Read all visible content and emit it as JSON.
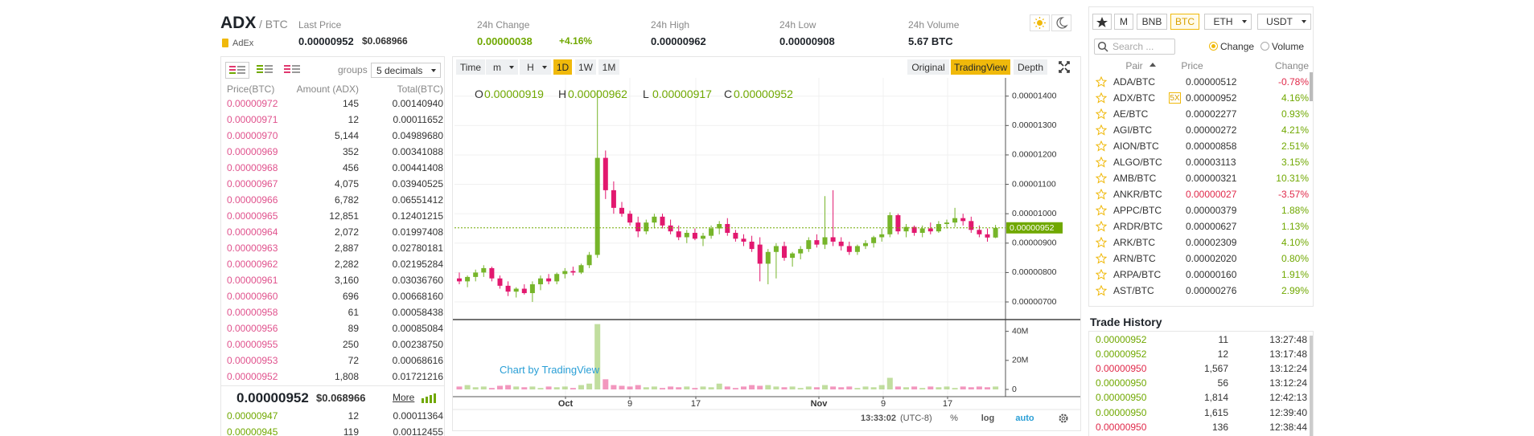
{
  "header": {
    "symbol": "ADX",
    "quote": "/ BTC",
    "asset_name": "AdEx",
    "stats": [
      {
        "label": "Last Price",
        "value": "0.00000952",
        "extra": "$0.068966"
      },
      {
        "label": "24h Change",
        "value": "0.00000038",
        "extra": "+4.16%",
        "color": "#70a800"
      },
      {
        "label": "24h High",
        "value": "0.00000962"
      },
      {
        "label": "24h Low",
        "value": "0.00000908"
      },
      {
        "label": "24h Volume",
        "value": "5.67 BTC"
      }
    ]
  },
  "order_book": {
    "groups_label": "groups",
    "groups_value": "5 decimals",
    "columns": [
      "Price(BTC)",
      "Amount (ADX)",
      "Total(BTC)"
    ],
    "ask_color": "#e0528d",
    "bid_color": "#70a800",
    "asks": [
      [
        "0.00000972",
        "145",
        "0.00140940"
      ],
      [
        "0.00000971",
        "12",
        "0.00011652"
      ],
      [
        "0.00000970",
        "5,144",
        "0.04989680"
      ],
      [
        "0.00000969",
        "352",
        "0.00341088"
      ],
      [
        "0.00000968",
        "456",
        "0.00441408"
      ],
      [
        "0.00000967",
        "4,075",
        "0.03940525"
      ],
      [
        "0.00000966",
        "6,782",
        "0.06551412"
      ],
      [
        "0.00000965",
        "12,851",
        "0.12401215"
      ],
      [
        "0.00000964",
        "2,072",
        "0.01997408"
      ],
      [
        "0.00000963",
        "2,887",
        "0.02780181"
      ],
      [
        "0.00000962",
        "2,282",
        "0.02195284"
      ],
      [
        "0.00000961",
        "3,160",
        "0.03036760"
      ],
      [
        "0.00000960",
        "696",
        "0.00668160"
      ],
      [
        "0.00000958",
        "61",
        "0.00058438"
      ],
      [
        "0.00000956",
        "89",
        "0.00085084"
      ],
      [
        "0.00000955",
        "250",
        "0.00238750"
      ],
      [
        "0.00000953",
        "72",
        "0.00068616"
      ],
      [
        "0.00000952",
        "1,808",
        "0.01721216"
      ]
    ],
    "last_price": "0.00000952",
    "last_price_usd": "$0.068966",
    "more": "More",
    "bids": [
      [
        "0.00000947",
        "12",
        "0.00011364"
      ],
      [
        "0.00000945",
        "119",
        "0.00112455"
      ]
    ]
  },
  "chart_data": {
    "type": "candlestick",
    "toolbar": {
      "left": [
        "Time",
        "m",
        "H",
        "1D",
        "1W",
        "1M"
      ],
      "left_dropdowns": [
        1,
        2
      ],
      "active_left": 3,
      "right": [
        "Original",
        "TradingView",
        "Depth"
      ],
      "active_right": 1
    },
    "ohlc_legend": [
      {
        "key": "O",
        "value": "0.00000919"
      },
      {
        "key": "H",
        "value": "0.00000962"
      },
      {
        "key": "L",
        "value": "0.00000917"
      },
      {
        "key": "C",
        "value": "0.00000952"
      }
    ],
    "up_color": "#76b52a",
    "down_color": "#e2186f",
    "candles": [
      [
        7.8e-06,
        8e-06,
        7.6e-06,
        7.7e-06
      ],
      [
        7.7e-06,
        7.9e-06,
        7.5e-06,
        7.85e-06
      ],
      [
        7.85e-06,
        8.1e-06,
        7.7e-06,
        8e-06
      ],
      [
        8e-06,
        8.25e-06,
        7.85e-06,
        8.15e-06
      ],
      [
        8.15e-06,
        8.2e-06,
        7.7e-06,
        7.8e-06
      ],
      [
        7.8e-06,
        7.9e-06,
        7.45e-06,
        7.55e-06
      ],
      [
        7.55e-06,
        7.7e-06,
        7.2e-06,
        7.35e-06
      ],
      [
        7.35e-06,
        7.5e-06,
        7.15e-06,
        7.45e-06
      ],
      [
        7.45e-06,
        7.6e-06,
        7.25e-06,
        7.3e-06
      ],
      [
        7.3e-06,
        7.7e-06,
        7e-06,
        7.6e-06
      ],
      [
        7.6e-06,
        7.9e-06,
        7.4e-06,
        7.8e-06
      ],
      [
        7.8e-06,
        7.95e-06,
        7.6e-06,
        7.7e-06
      ],
      [
        7.7e-06,
        8e-06,
        7.6e-06,
        7.95e-06
      ],
      [
        7.95e-06,
        8.15e-06,
        7.8e-06,
        8.05e-06
      ],
      [
        8.05e-06,
        8.2e-06,
        7.9e-06,
        8e-06
      ],
      [
        8e-06,
        8.3e-06,
        7.95e-06,
        8.25e-06
      ],
      [
        8.25e-06,
        8.7e-06,
        8.15e-06,
        8.6e-06
      ],
      [
        8.6e-06,
        1.42e-05,
        8.5e-06,
        1.19e-05
      ],
      [
        1.19e-05,
        1.215e-05,
        1.05e-05,
        1.08e-05
      ],
      [
        1.08e-05,
        1.11e-05,
        1e-05,
        1.02e-05
      ],
      [
        1.02e-05,
        1.04e-05,
        9.9e-06,
        1e-05
      ],
      [
        1e-05,
        1.01e-05,
        9.6e-06,
        9.7e-06
      ],
      [
        9.7e-06,
        9.9e-06,
        9.2e-06,
        9.4e-06
      ],
      [
        9.4e-06,
        9.8e-06,
        9.3e-06,
        9.7e-06
      ],
      [
        9.7e-06,
        1e-05,
        9.5e-06,
        9.9e-06
      ],
      [
        9.9e-06,
        1e-05,
        9.5e-06,
        9.6e-06
      ],
      [
        9.6e-06,
        9.8e-06,
        9.3e-06,
        9.4e-06
      ],
      [
        9.4e-06,
        9.6e-06,
        9.1e-06,
        9.2e-06
      ],
      [
        9.2e-06,
        9.45e-06,
        9e-06,
        9.35e-06
      ],
      [
        9.35e-06,
        9.5e-06,
        9.1e-06,
        9.15e-06
      ],
      [
        9.15e-06,
        9.35e-06,
        8.9e-06,
        9.25e-06
      ],
      [
        9.25e-06,
        9.6e-06,
        9.15e-06,
        9.5e-06
      ],
      [
        9.5e-06,
        9.75e-06,
        9.3e-06,
        9.65e-06
      ],
      [
        9.65e-06,
        9.85e-06,
        9.25e-06,
        9.35e-06
      ],
      [
        9.35e-06,
        9.45e-06,
        9.05e-06,
        9.15e-06
      ],
      [
        9.15e-06,
        9.3e-06,
        8.9e-06,
        9.05e-06
      ],
      [
        9.05e-06,
        9.25e-06,
        8.7e-06,
        8.8e-06
      ],
      [
        8.95e-06,
        9.2e-06,
        7.7e-06,
        8.3e-06
      ],
      [
        8.3e-06,
        8.8e-06,
        7.6e-06,
        8.7e-06
      ],
      [
        8.7e-06,
        9e-06,
        7.8e-06,
        8.9e-06
      ],
      [
        8.9e-06,
        9.05e-06,
        8.4e-06,
        8.5e-06
      ],
      [
        8.5e-06,
        8.7e-06,
        8.2e-06,
        8.65e-06
      ],
      [
        8.65e-06,
        8.9e-06,
        8.45e-06,
        8.8e-06
      ],
      [
        8.8e-06,
        9.2e-06,
        8.7e-06,
        9.1e-06
      ],
      [
        9.1e-06,
        9.3e-06,
        8.85e-06,
        8.95e-06
      ],
      [
        8.95e-06,
        1.06e-05,
        8.8e-06,
        9.2e-06
      ],
      [
        9.2e-06,
        1.08e-05,
        8.9e-06,
        9.05e-06
      ],
      [
        9.05e-06,
        9.2e-06,
        8.75e-06,
        8.9e-06
      ],
      [
        8.9e-06,
        9.05e-06,
        8.6e-06,
        8.7e-06
      ],
      [
        8.7e-06,
        8.95e-06,
        8.6e-06,
        8.9e-06
      ],
      [
        8.9e-06,
        9.1e-06,
        8.8e-06,
        9e-06
      ],
      [
        9e-06,
        9.25e-06,
        8.85e-06,
        9.2e-06
      ],
      [
        9.2e-06,
        9.5e-06,
        9.05e-06,
        9.3e-06
      ],
      [
        9.3e-06,
        1.005e-05,
        9.2e-06,
        9.95e-06
      ],
      [
        9.95e-06,
        1e-05,
        9.3e-06,
        9.4e-06
      ],
      [
        9.4e-06,
        9.65e-06,
        9.2e-06,
        9.55e-06
      ],
      [
        9.55e-06,
        9.6e-06,
        9.25e-06,
        9.35e-06
      ],
      [
        9.35e-06,
        9.6e-06,
        9.2e-06,
        9.5e-06
      ],
      [
        9.5e-06,
        9.7e-06,
        9.3e-06,
        9.4e-06
      ],
      [
        9.4e-06,
        9.75e-06,
        9.35e-06,
        9.65e-06
      ],
      [
        9.65e-06,
        9.8e-06,
        9.5e-06,
        9.7e-06
      ],
      [
        9.7e-06,
        1.02e-05,
        9.55e-06,
        9.85e-06
      ],
      [
        9.85e-06,
        1e-05,
        9.6e-06,
        9.75e-06
      ],
      [
        9.75e-06,
        9.9e-06,
        9.35e-06,
        9.45e-06
      ],
      [
        9.45e-06,
        9.6e-06,
        9.2e-06,
        9.3e-06
      ],
      [
        9.3e-06,
        9.5e-06,
        9.05e-06,
        9.19e-06
      ],
      [
        9.19e-06,
        9.62e-06,
        9.17e-06,
        9.52e-06
      ]
    ],
    "volumes": [
      2000000,
      3000000,
      1500000,
      2000000,
      1000000,
      2500000,
      3000000,
      2000000,
      1500000,
      2000000,
      1000000,
      2000000,
      1500000,
      2000000,
      1000000,
      3000000,
      4000000,
      45000000,
      7000000,
      3000000,
      2500000,
      2000000,
      3000000,
      1500000,
      2000000,
      1000000,
      2000000,
      1500000,
      2000000,
      1000000,
      2000000,
      1500000,
      4000000,
      2000000,
      1000000,
      2000000,
      3000000,
      2500000,
      3000000,
      2000000,
      1500000,
      2000000,
      1000000,
      2000000,
      1500000,
      3000000,
      2000000,
      1500000,
      2000000,
      1000000,
      2000000,
      1500000,
      3000000,
      8000000,
      2000000,
      1500000,
      2000000,
      1000000,
      2000000,
      1500000,
      2000000,
      1000000,
      2000000,
      1500000,
      2000000,
      1500000,
      2000000
    ],
    "ylim": [
      6.4e-06,
      1.462e-05
    ],
    "yticks": [
      {
        "value": 7e-06,
        "label": "0.00000700"
      },
      {
        "value": 8e-06,
        "label": "0.00000800"
      },
      {
        "value": 9e-06,
        "label": "0.00000900"
      },
      {
        "value": 1e-05,
        "label": "0.00001000"
      },
      {
        "value": 1.1e-05,
        "label": "0.00001100"
      },
      {
        "value": 1.2e-05,
        "label": "0.00001200"
      },
      {
        "value": 1.3e-05,
        "label": "0.00001300"
      },
      {
        "value": 1.4e-05,
        "label": "0.00001400"
      }
    ],
    "last_price": {
      "value": 9.52e-06,
      "label": "0.00000952"
    },
    "last_price_color": "#70a800",
    "vlim": [
      0,
      47000000
    ],
    "vticks": [
      0,
      {
        "value": 20000000,
        "label": "20M"
      },
      {
        "value": 40000000,
        "label": "40M"
      }
    ],
    "x_labels": [
      "Oct",
      "9",
      "17",
      "Nov",
      "9",
      "17"
    ],
    "watermark": "Chart by TradingView",
    "grid": true,
    "status_bar": {
      "time": "13:33:02",
      "timezone": "(UTC-8)",
      "percent": "%",
      "log": "log",
      "auto": "auto"
    }
  },
  "market": {
    "tabs": [
      "M",
      "BNB",
      "BTC",
      "ETH",
      "USDT"
    ],
    "active_tab": 2,
    "dropdown_tabs": [
      3,
      4
    ],
    "search_placeholder": "Search ...",
    "radios": [
      "Change",
      "Volume"
    ],
    "columns": [
      "Pair",
      "Price",
      "Change"
    ],
    "up_color": "#70a800",
    "down_color": "#e0294a",
    "pairs": [
      {
        "pair": "ADA/BTC",
        "price": "0.00000512",
        "change": "-0.78%"
      },
      {
        "pair": "ADX/BTC",
        "badge": "5X",
        "price": "0.00000952",
        "change": "4.16%"
      },
      {
        "pair": "AE/BTC",
        "price": "0.00002277",
        "change": "0.93%"
      },
      {
        "pair": "AGI/BTC",
        "price": "0.00000272",
        "change": "4.21%"
      },
      {
        "pair": "AION/BTC",
        "price": "0.00000858",
        "change": "2.51%"
      },
      {
        "pair": "ALGO/BTC",
        "price": "0.00003113",
        "change": "3.15%"
      },
      {
        "pair": "AMB/BTC",
        "price": "0.00000321",
        "change": "10.31%"
      },
      {
        "pair": "ANKR/BTC",
        "price": "0.00000027",
        "change": "-3.57%",
        "price_color": "#e0294a"
      },
      {
        "pair": "APPC/BTC",
        "price": "0.00000379",
        "change": "1.88%"
      },
      {
        "pair": "ARDR/BTC",
        "price": "0.00000627",
        "change": "1.13%"
      },
      {
        "pair": "ARK/BTC",
        "price": "0.00002309",
        "change": "4.10%"
      },
      {
        "pair": "ARN/BTC",
        "price": "0.00002020",
        "change": "0.80%"
      },
      {
        "pair": "ARPA/BTC",
        "price": "0.00000160",
        "change": "1.91%"
      },
      {
        "pair": "AST/BTC",
        "price": "0.00000276",
        "change": "2.99%"
      }
    ]
  },
  "trade_history": {
    "title": "Trade History",
    "rows": [
      {
        "price": "0.00000952",
        "amount": "11",
        "time": "13:27:48",
        "color": "#70a800"
      },
      {
        "price": "0.00000952",
        "amount": "12",
        "time": "13:17:48",
        "color": "#70a800"
      },
      {
        "price": "0.00000950",
        "amount": "1,567",
        "time": "13:12:24",
        "color": "#e0294a"
      },
      {
        "price": "0.00000950",
        "amount": "56",
        "time": "13:12:24",
        "color": "#70a800"
      },
      {
        "price": "0.00000950",
        "amount": "1,814",
        "time": "12:42:13",
        "color": "#70a800"
      },
      {
        "price": "0.00000950",
        "amount": "1,615",
        "time": "12:39:40",
        "color": "#70a800"
      },
      {
        "price": "0.00000950",
        "amount": "136",
        "time": "12:38:44",
        "color": "#e0294a"
      }
    ]
  }
}
